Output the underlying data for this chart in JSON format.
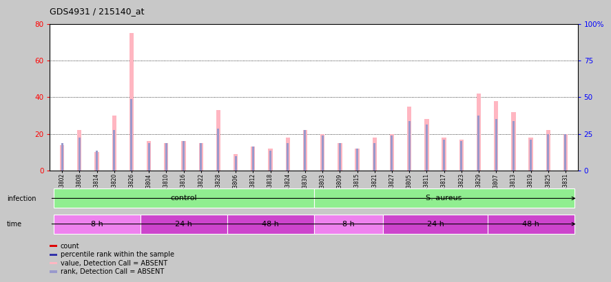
{
  "title": "GDS4931 / 215140_at",
  "samples": [
    "GSM343802",
    "GSM343808",
    "GSM343814",
    "GSM343820",
    "GSM343826",
    "GSM343804",
    "GSM343810",
    "GSM343816",
    "GSM343822",
    "GSM343828",
    "GSM343806",
    "GSM343812",
    "GSM343818",
    "GSM343824",
    "GSM343830",
    "GSM343803",
    "GSM343809",
    "GSM343815",
    "GSM343821",
    "GSM343827",
    "GSM343805",
    "GSM343811",
    "GSM343817",
    "GSM343823",
    "GSM343829",
    "GSM343807",
    "GSM343813",
    "GSM343819",
    "GSM343825",
    "GSM343831"
  ],
  "pink_values": [
    14,
    22,
    10,
    30,
    75,
    16,
    15,
    16,
    15,
    33,
    9,
    13,
    12,
    18,
    22,
    20,
    15,
    12,
    18,
    20,
    35,
    28,
    18,
    17,
    42,
    38,
    32,
    18,
    22,
    20
  ],
  "blue_values": [
    15,
    18,
    11,
    22,
    39,
    15,
    15,
    16,
    15,
    23,
    8,
    13,
    11,
    15,
    22,
    19,
    15,
    12,
    15,
    19,
    27,
    25,
    17,
    16,
    30,
    28,
    27,
    17,
    20,
    20
  ],
  "infection_groups": [
    {
      "label": "control",
      "start": 0,
      "end": 15,
      "color": "#90ee90"
    },
    {
      "label": "S. aureus",
      "start": 15,
      "end": 30,
      "color": "#90ee90"
    }
  ],
  "time_groups": [
    {
      "label": "8 h",
      "start": 0,
      "end": 5,
      "color": "#ee82ee"
    },
    {
      "label": "24 h",
      "start": 5,
      "end": 10,
      "color": "#cc44cc"
    },
    {
      "label": "48 h",
      "start": 10,
      "end": 15,
      "color": "#cc44cc"
    },
    {
      "label": "8 h",
      "start": 15,
      "end": 19,
      "color": "#ee82ee"
    },
    {
      "label": "24 h",
      "start": 19,
      "end": 25,
      "color": "#cc44cc"
    },
    {
      "label": "48 h",
      "start": 25,
      "end": 30,
      "color": "#cc44cc"
    }
  ],
  "ylim_left": [
    0,
    80
  ],
  "ylim_right": [
    0,
    100
  ],
  "left_yticks": [
    0,
    20,
    40,
    60,
    80
  ],
  "right_yticks": [
    0,
    25,
    50,
    75,
    100
  ],
  "pink_color": "#ffb6c1",
  "blue_color": "#9999cc",
  "red_color": "#dd0000",
  "dark_blue_color": "#3333aa",
  "fig_bg": "#c8c8c8",
  "plot_bg": "#ffffff",
  "pink_bar_width": 0.25,
  "blue_bar_width": 0.12
}
